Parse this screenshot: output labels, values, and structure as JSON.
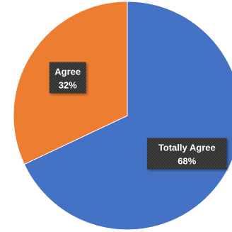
{
  "chart_data": {
    "type": "pie",
    "categories": [
      "Totally Agree",
      "Agree"
    ],
    "values": [
      68,
      32
    ],
    "value_labels": [
      "68%",
      "32%"
    ],
    "colors": [
      "#4472C4",
      "#ED7D31"
    ],
    "start_angle_deg": 0,
    "direction": "clockwise",
    "legend": "none"
  }
}
